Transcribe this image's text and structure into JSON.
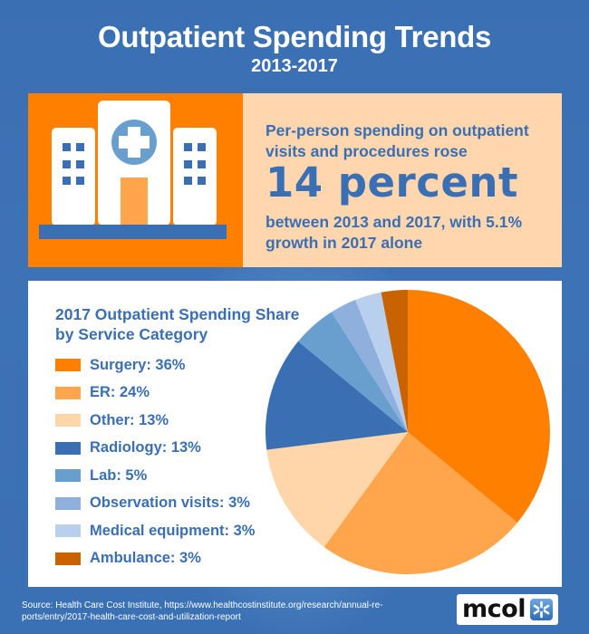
{
  "header": {
    "title": "Outpatient Spending Trends",
    "subtitle": "2013-2017"
  },
  "icon": {
    "semantic": "hospital-icon"
  },
  "highlight": {
    "lead": "Per-person spending on outpatient visits and procedures rose",
    "big": "14 percent",
    "tail": "between 2013 and 2017, with 5.1% growth in 2017 alone"
  },
  "colors": {
    "background": "#3a6fb3",
    "accent_orange": "#ff8000",
    "peach": "#ffd6ae",
    "text_blue": "#3a6fb3"
  },
  "chart_data": {
    "type": "pie",
    "title": "2017 Outpatient Spending Share by Service Category",
    "title_lines": [
      "2017 Outpatient Spending Share",
      "by Service Category"
    ],
    "unit": "%",
    "legend_position": "left",
    "start_angle": "12 o'clock, clockwise",
    "slices": [
      {
        "label": "Surgery",
        "value": 36,
        "color": "#ff8000",
        "legend": "Surgery: 36%"
      },
      {
        "label": "ER",
        "value": 24,
        "color": "#ffa54c",
        "legend": "ER: 24%"
      },
      {
        "label": "Other",
        "value": 13,
        "color": "#ffd6a9",
        "legend": "Other: 13%"
      },
      {
        "label": "Radiology",
        "value": 13,
        "color": "#3a6fb3",
        "legend": "Radiology: 13%"
      },
      {
        "label": "Lab",
        "value": 5,
        "color": "#699fcf",
        "legend": "Lab: 5%"
      },
      {
        "label": "Observation visits",
        "value": 3,
        "color": "#8fb0dc",
        "legend": "Observation visits: 3%"
      },
      {
        "label": "Medical equipment",
        "value": 3,
        "color": "#b8d0ee",
        "legend": "Medical equipment: 3%"
      },
      {
        "label": "Ambulance",
        "value": 3,
        "color": "#c96200",
        "legend": "Ambulance: 3%"
      }
    ]
  },
  "footer": {
    "source_line1": "Source: Health Care Cost Institute, https://www.healthcostinstitute.org/research/annual-re-",
    "source_line2": "ports/entry/2017-health-care-cost-and-utilization-report",
    "logo_text": "mcol"
  }
}
